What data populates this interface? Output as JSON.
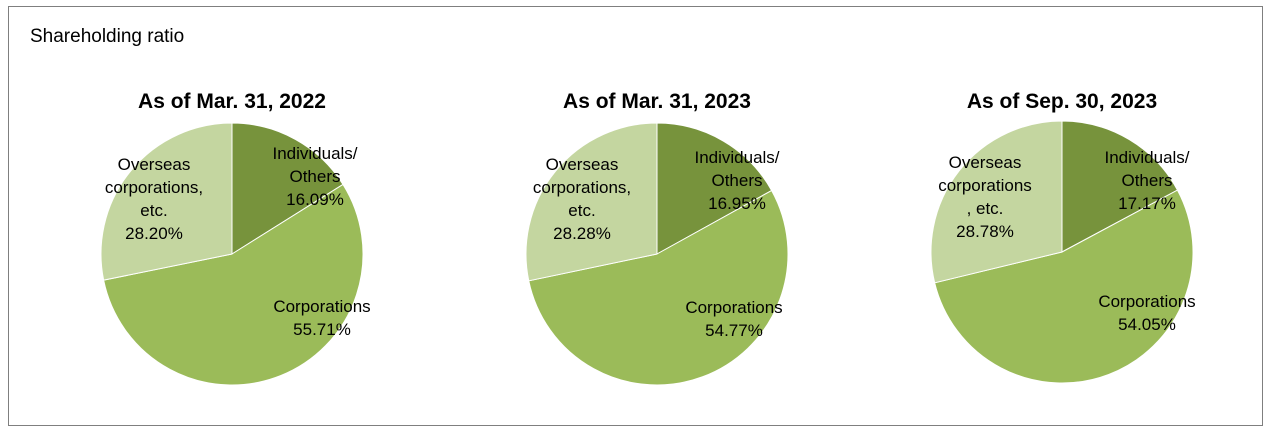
{
  "panel_title": "Shareholding ratio",
  "colors": {
    "individuals": "#77933c",
    "corporations": "#9bbb59",
    "overseas": "#c4d6a0",
    "border": "#ffffff"
  },
  "chart_data": [
    {
      "type": "pie",
      "title": "As of Mar. 31, 2022",
      "categories": [
        "Individuals/ Others",
        "Corporations",
        "Overseas corporations, etc."
      ],
      "values": [
        16.09,
        55.71,
        28.2
      ],
      "labels": [
        [
          "Individuals/",
          "Others",
          "16.09%"
        ],
        [
          "Corporations",
          "55.71%"
        ],
        [
          "Overseas",
          "corporations,",
          "etc.",
          "28.20%"
        ]
      ]
    },
    {
      "type": "pie",
      "title": "As of Mar. 31, 2023",
      "categories": [
        "Individuals/ Others",
        "Corporations",
        "Overseas corporations, etc."
      ],
      "values": [
        16.95,
        54.77,
        28.28
      ],
      "labels": [
        [
          "Individuals/",
          "Others",
          "16.95%"
        ],
        [
          "Corporations",
          "54.77%"
        ],
        [
          "Overseas",
          "corporations,",
          "etc.",
          "28.28%"
        ]
      ]
    },
    {
      "type": "pie",
      "title": "As of Sep. 30, 2023",
      "categories": [
        "Individuals/ Others",
        "Corporations",
        "Overseas corporations, etc."
      ],
      "values": [
        17.17,
        54.05,
        28.78
      ],
      "labels": [
        [
          "Individuals/",
          "Others",
          "17.17%"
        ],
        [
          "Corporations",
          "54.05%"
        ],
        [
          "Overseas",
          "corporations",
          ", etc.",
          "28.78%"
        ]
      ]
    }
  ]
}
